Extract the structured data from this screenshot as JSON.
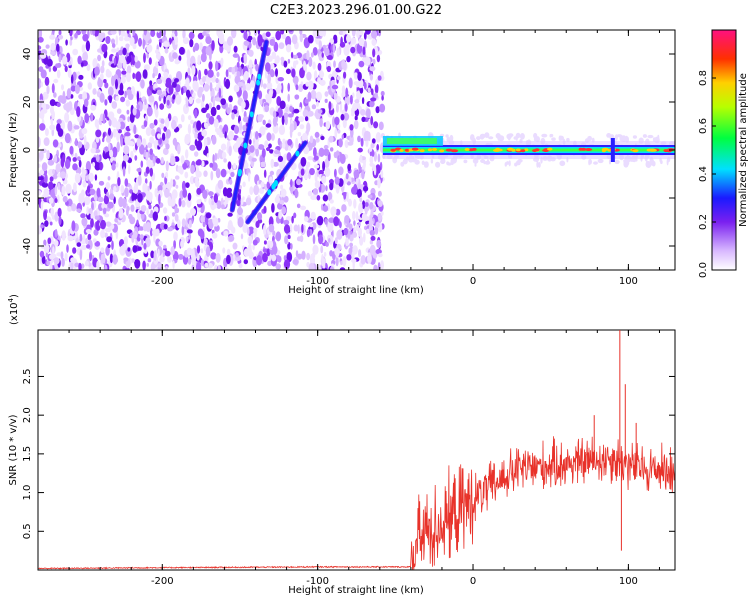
{
  "title": "C2E3.2023.296.01.00.G22",
  "chart_data": [
    {
      "type": "heatmap",
      "name": "spectrogram",
      "xlabel": "Height of straight line (km)",
      "ylabel": "Frequency (Hz)",
      "xlim": [
        -280,
        130
      ],
      "ylim": [
        -50,
        50
      ],
      "xticks": [
        -200,
        -100,
        0,
        100
      ],
      "yticks": [
        -40,
        -20,
        0,
        20,
        40
      ],
      "features": {
        "noise_region_x": [
          -280,
          -58
        ],
        "signal_region_x": [
          -58,
          130
        ],
        "signal_frequency_hz": 0,
        "streak_1": {
          "x": [
            -155,
            -133
          ],
          "y": [
            -25,
            45
          ]
        },
        "streak_2": {
          "x": [
            -145,
            -108
          ],
          "y": [
            -30,
            3
          ]
        }
      },
      "colorbar": {
        "label": "Normalized spectral amplitude",
        "range": [
          0,
          1
        ],
        "ticks": [
          0.0,
          0.2,
          0.4,
          0.6,
          0.8
        ],
        "tick_labels": [
          "0.0",
          "0.2",
          "0.4",
          "0.6",
          "0.8"
        ]
      }
    },
    {
      "type": "line",
      "name": "snr",
      "xlabel": "Height of straight line (km)",
      "ylabel": "SNR (10 * v/v)",
      "scale_note": "(x10",
      "scale_exp": "4",
      "scale_close": ")",
      "xlim": [
        -280,
        130
      ],
      "ylim": [
        0,
        3.1
      ],
      "xticks": [
        -200,
        -100,
        0,
        100
      ],
      "yticks": [
        0.5,
        1.0,
        1.5,
        2.0,
        2.5
      ],
      "ytick_labels": [
        "0.5",
        "1.0",
        "1.5",
        "2.0",
        "2.5"
      ],
      "color": "#e8322a",
      "profile": [
        {
          "x": -280,
          "y": 0.02
        },
        {
          "x": -200,
          "y": 0.03
        },
        {
          "x": -100,
          "y": 0.04
        },
        {
          "x": -40,
          "y": 0.04
        },
        {
          "x": -37,
          "y": 0.3
        },
        {
          "x": -30,
          "y": 0.5
        },
        {
          "x": -20,
          "y": 0.6
        },
        {
          "x": -10,
          "y": 0.75
        },
        {
          "x": 0,
          "y": 0.9
        },
        {
          "x": 10,
          "y": 1.05
        },
        {
          "x": 20,
          "y": 1.2
        },
        {
          "x": 30,
          "y": 1.3
        },
        {
          "x": 50,
          "y": 1.35
        },
        {
          "x": 70,
          "y": 1.4
        },
        {
          "x": 90,
          "y": 1.45
        },
        {
          "x": 100,
          "y": 1.35
        },
        {
          "x": 115,
          "y": 1.3
        },
        {
          "x": 130,
          "y": 1.3
        }
      ],
      "spikes": [
        {
          "x": 94.5,
          "y": 3.1
        },
        {
          "x": 95.5,
          "y": 0.25
        },
        {
          "x": 78,
          "y": 2.0
        },
        {
          "x": 98,
          "y": 2.4
        },
        {
          "x": 105,
          "y": 1.9
        }
      ]
    }
  ]
}
